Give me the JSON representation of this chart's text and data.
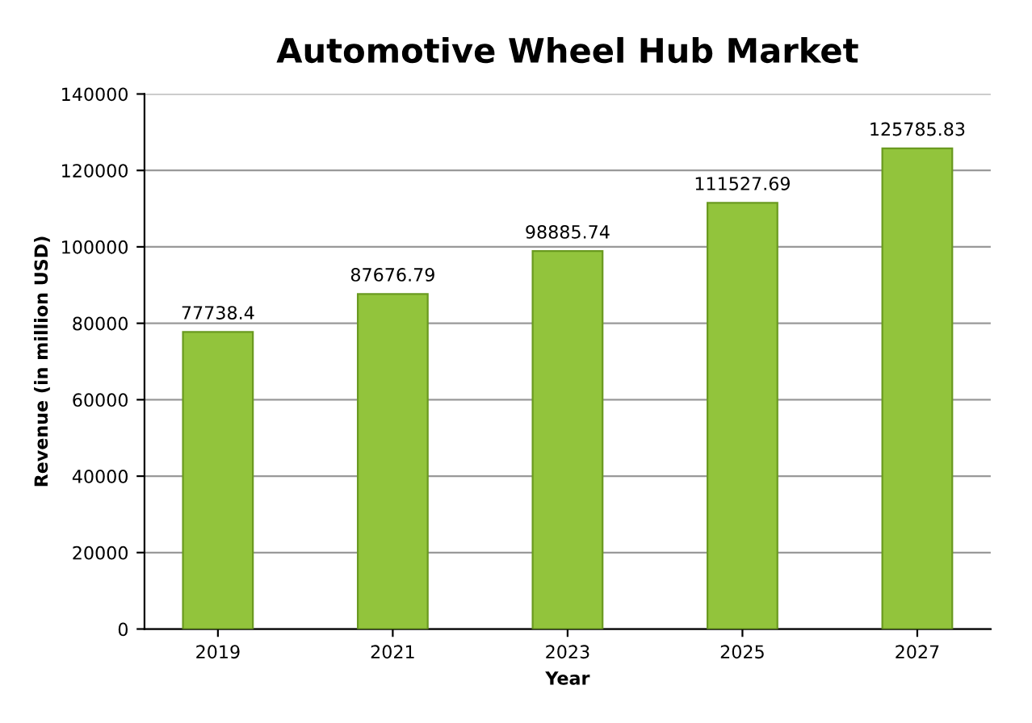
{
  "chart_data": {
    "type": "bar",
    "title": "Automotive Wheel Hub Market",
    "xlabel": "Year",
    "ylabel": "Revenue (in million USD)",
    "categories": [
      "2019",
      "2021",
      "2023",
      "2025",
      "2027"
    ],
    "values": [
      77738.4,
      87676.79,
      98885.74,
      111527.69,
      125785.83
    ],
    "color": "#92c43c",
    "ylim": [
      0,
      140000
    ],
    "yticks": [
      0,
      20000,
      40000,
      60000,
      80000,
      100000,
      120000,
      140000
    ],
    "grid": "y",
    "data_labels": true
  }
}
